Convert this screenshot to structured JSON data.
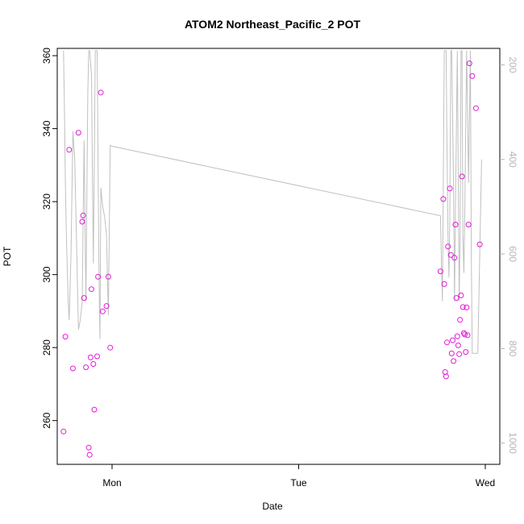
{
  "chart_data": {
    "type": "scatter",
    "title": "ATOM2 Northeast_Pacific_2 POT",
    "xlabel": "Date",
    "ylabel": "POT",
    "x_ticks": [
      "Mon",
      "Tue",
      "Wed"
    ],
    "y_left_ticks": [
      260,
      280,
      300,
      320,
      340,
      360
    ],
    "y_right_ticks": [
      200,
      400,
      600,
      800,
      1000
    ],
    "ylim": [
      248,
      362
    ],
    "y_right_lim": [
      1045,
      165
    ],
    "right_axis_reversed": true,
    "colors": {
      "points": "#e21bd4",
      "line": "#c0c0c0",
      "axis": "#000000",
      "right_axis": "#b5b5b5"
    },
    "series": [
      {
        "type": "points",
        "axis": "left",
        "points": [
          [
            -0.26,
            257.0
          ],
          [
            -0.25,
            283.0
          ],
          [
            -0.23,
            334.2
          ],
          [
            -0.21,
            274.3
          ],
          [
            -0.18,
            338.9
          ],
          [
            -0.16,
            314.5
          ],
          [
            -0.155,
            316.2
          ],
          [
            -0.15,
            293.6
          ],
          [
            -0.14,
            274.6
          ],
          [
            -0.125,
            252.6
          ],
          [
            -0.12,
            250.6
          ],
          [
            -0.115,
            277.3
          ],
          [
            -0.11,
            296.0
          ],
          [
            -0.1,
            275.5
          ],
          [
            -0.095,
            263.0
          ],
          [
            -0.08,
            277.6
          ],
          [
            -0.075,
            299.4
          ],
          [
            -0.06,
            349.9
          ],
          [
            -0.05,
            289.9
          ],
          [
            -0.03,
            291.4
          ],
          [
            -0.02,
            299.4
          ],
          [
            -0.01,
            280.0
          ],
          [
            1.76,
            300.9
          ],
          [
            1.775,
            320.7
          ],
          [
            1.78,
            297.4
          ],
          [
            1.785,
            273.3
          ],
          [
            1.79,
            272.1
          ],
          [
            1.795,
            281.4
          ],
          [
            1.8,
            307.7
          ],
          [
            1.81,
            323.6
          ],
          [
            1.815,
            305.4
          ],
          [
            1.82,
            278.4
          ],
          [
            1.825,
            282.0
          ],
          [
            1.83,
            276.3
          ],
          [
            1.835,
            304.6
          ],
          [
            1.84,
            313.7
          ],
          [
            1.845,
            293.6
          ],
          [
            1.85,
            283.1
          ],
          [
            1.855,
            280.6
          ],
          [
            1.86,
            278.2
          ],
          [
            1.865,
            287.6
          ],
          [
            1.87,
            294.3
          ],
          [
            1.875,
            326.9
          ],
          [
            1.88,
            291.1
          ],
          [
            1.885,
            284.0
          ],
          [
            1.89,
            283.6
          ],
          [
            1.895,
            278.8
          ],
          [
            1.9,
            291.0
          ],
          [
            1.905,
            283.4
          ],
          [
            1.91,
            313.7
          ],
          [
            1.915,
            357.9
          ],
          [
            1.93,
            354.4
          ],
          [
            1.95,
            345.6
          ],
          [
            1.97,
            308.3
          ]
        ]
      },
      {
        "type": "line",
        "axis": "right",
        "points": [
          [
            -0.26,
            170
          ],
          [
            -0.255,
            300
          ],
          [
            -0.25,
            450
          ],
          [
            -0.245,
            560
          ],
          [
            -0.235,
            700
          ],
          [
            -0.23,
            740
          ],
          [
            -0.22,
            600
          ],
          [
            -0.21,
            340
          ],
          [
            -0.2,
            400
          ],
          [
            -0.19,
            580
          ],
          [
            -0.18,
            760
          ],
          [
            -0.17,
            740
          ],
          [
            -0.16,
            700
          ],
          [
            -0.15,
            360
          ],
          [
            -0.14,
            700
          ],
          [
            -0.13,
            260
          ],
          [
            -0.125,
            170
          ],
          [
            -0.12,
            170
          ],
          [
            -0.11,
            220
          ],
          [
            -0.105,
            440
          ],
          [
            -0.1,
            620
          ],
          [
            -0.095,
            400
          ],
          [
            -0.09,
            170
          ],
          [
            -0.085,
            170
          ],
          [
            -0.08,
            170
          ],
          [
            -0.07,
            650
          ],
          [
            -0.065,
            780
          ],
          [
            -0.06,
            460
          ],
          [
            -0.05,
            500
          ],
          [
            -0.04,
            520
          ],
          [
            -0.03,
            560
          ],
          [
            -0.02,
            730
          ],
          [
            -0.01,
            370
          ],
          [
            0.0,
            372
          ],
          [
            1.76,
            519
          ],
          [
            1.765,
            620
          ],
          [
            1.77,
            700
          ],
          [
            1.78,
            170
          ],
          [
            1.79,
            170
          ],
          [
            1.795,
            380
          ],
          [
            1.8,
            560
          ],
          [
            1.805,
            650
          ],
          [
            1.81,
            520
          ],
          [
            1.815,
            170
          ],
          [
            1.82,
            170
          ],
          [
            1.83,
            450
          ],
          [
            1.835,
            700
          ],
          [
            1.84,
            500
          ],
          [
            1.85,
            170
          ],
          [
            1.86,
            700
          ],
          [
            1.865,
            560
          ],
          [
            1.87,
            170
          ],
          [
            1.875,
            170
          ],
          [
            1.88,
            560
          ],
          [
            1.885,
            640
          ],
          [
            1.89,
            520
          ],
          [
            1.9,
            170
          ],
          [
            1.905,
            300
          ],
          [
            1.91,
            450
          ],
          [
            1.92,
            170
          ],
          [
            1.925,
            600
          ],
          [
            1.93,
            810
          ],
          [
            1.94,
            810
          ],
          [
            1.95,
            810
          ],
          [
            1.96,
            810
          ],
          [
            1.97,
            600
          ],
          [
            1.98,
            400
          ]
        ]
      }
    ]
  }
}
